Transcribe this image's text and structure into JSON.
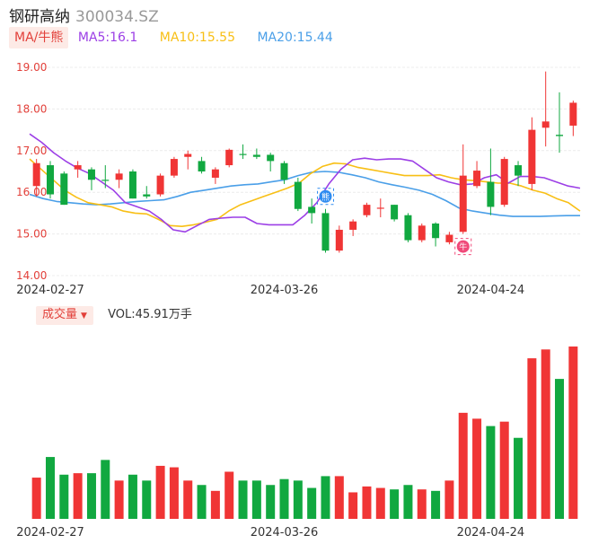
{
  "header": {
    "name": "钢研高纳",
    "code": "300034.SZ"
  },
  "ma_legend": {
    "label": "MA/牛熊",
    "ma5": "MA5:16.1",
    "ma10": "MA10:15.55",
    "ma20": "MA20:15.44"
  },
  "volume_legend": {
    "label": "成交量",
    "value": "VOL:45.91万手"
  },
  "colors": {
    "up": "#f03535",
    "down": "#11a840",
    "ma5": "#9c3fe6",
    "ma10": "#f8bf15",
    "ma20": "#4a9fe8",
    "axis_label": "#e2403a"
  },
  "chart_data": [
    {
      "type": "candlestick",
      "y_ticks": [
        "19.00",
        "18.00",
        "17.00",
        "16.00",
        "15.00",
        "14.00"
      ],
      "ylim": [
        14.0,
        19.0
      ],
      "x_tick_labels": [
        {
          "index": 1,
          "label": "2024-02-27"
        },
        {
          "index": 18,
          "label": "2024-03-26"
        },
        {
          "index": 33,
          "label": "2024-04-24"
        }
      ],
      "markers": [
        {
          "index": 21,
          "type": "bear-badge",
          "label": "熊"
        },
        {
          "index": 31,
          "type": "bull-badge",
          "label": "牛"
        }
      ],
      "candles": [
        {
          "o": 16.15,
          "h": 16.8,
          "l": 15.9,
          "c": 16.7
        },
        {
          "o": 16.65,
          "h": 16.75,
          "l": 15.85,
          "c": 15.95
        },
        {
          "o": 16.45,
          "h": 16.5,
          "l": 15.7,
          "c": 15.7
        },
        {
          "o": 16.55,
          "h": 16.75,
          "l": 16.35,
          "c": 16.65
        },
        {
          "o": 16.55,
          "h": 16.6,
          "l": 16.05,
          "c": 16.3
        },
        {
          "o": 16.3,
          "h": 16.65,
          "l": 16.1,
          "c": 16.28
        },
        {
          "o": 16.3,
          "h": 16.55,
          "l": 16.1,
          "c": 16.45
        },
        {
          "o": 16.5,
          "h": 16.55,
          "l": 15.85,
          "c": 15.85
        },
        {
          "o": 15.95,
          "h": 16.15,
          "l": 15.85,
          "c": 15.9
        },
        {
          "o": 15.95,
          "h": 16.45,
          "l": 15.9,
          "c": 16.4
        },
        {
          "o": 16.4,
          "h": 16.85,
          "l": 16.35,
          "c": 16.8
        },
        {
          "o": 16.85,
          "h": 17.0,
          "l": 16.55,
          "c": 16.92
        },
        {
          "o": 16.75,
          "h": 16.85,
          "l": 16.45,
          "c": 16.5
        },
        {
          "o": 16.35,
          "h": 16.6,
          "l": 16.2,
          "c": 16.55
        },
        {
          "o": 16.65,
          "h": 17.05,
          "l": 16.6,
          "c": 17.02
        },
        {
          "o": 16.92,
          "h": 17.15,
          "l": 16.8,
          "c": 16.9
        },
        {
          "o": 16.9,
          "h": 17.05,
          "l": 16.8,
          "c": 16.85
        },
        {
          "o": 16.9,
          "h": 16.95,
          "l": 16.5,
          "c": 16.75
        },
        {
          "o": 16.7,
          "h": 16.75,
          "l": 16.2,
          "c": 16.3
        },
        {
          "o": 16.25,
          "h": 16.35,
          "l": 15.55,
          "c": 15.6
        },
        {
          "o": 15.65,
          "h": 15.85,
          "l": 15.25,
          "c": 15.5
        },
        {
          "o": 15.5,
          "h": 15.6,
          "l": 14.55,
          "c": 14.6
        },
        {
          "o": 14.6,
          "h": 15.2,
          "l": 14.55,
          "c": 15.1
        },
        {
          "o": 15.1,
          "h": 15.35,
          "l": 14.95,
          "c": 15.3
        },
        {
          "o": 15.45,
          "h": 15.75,
          "l": 15.4,
          "c": 15.7
        },
        {
          "o": 15.63,
          "h": 15.85,
          "l": 15.4,
          "c": 15.63
        },
        {
          "o": 15.7,
          "h": 15.7,
          "l": 15.3,
          "c": 15.35
        },
        {
          "o": 15.45,
          "h": 15.5,
          "l": 14.8,
          "c": 14.85
        },
        {
          "o": 14.85,
          "h": 15.25,
          "l": 14.8,
          "c": 15.2
        },
        {
          "o": 15.25,
          "h": 15.28,
          "l": 14.7,
          "c": 14.9
        },
        {
          "o": 14.8,
          "h": 15.05,
          "l": 14.75,
          "c": 14.98
        },
        {
          "o": 15.05,
          "h": 17.15,
          "l": 15.0,
          "c": 16.4
        },
        {
          "o": 16.15,
          "h": 16.75,
          "l": 16.1,
          "c": 16.52
        },
        {
          "o": 16.25,
          "h": 17.05,
          "l": 15.45,
          "c": 15.65
        },
        {
          "o": 15.7,
          "h": 16.85,
          "l": 15.65,
          "c": 16.8
        },
        {
          "o": 16.65,
          "h": 16.75,
          "l": 16.15,
          "c": 16.4
        },
        {
          "o": 16.2,
          "h": 17.8,
          "l": 16.05,
          "c": 17.5
        },
        {
          "o": 17.55,
          "h": 18.9,
          "l": 17.1,
          "c": 17.7
        },
        {
          "o": 17.38,
          "h": 18.4,
          "l": 16.95,
          "c": 17.35
        },
        {
          "o": 17.6,
          "h": 18.2,
          "l": 17.35,
          "c": 18.15
        }
      ],
      "ma5": [
        17.4,
        17.2,
        16.95,
        16.75,
        16.58,
        16.45,
        16.25,
        16.05,
        15.75,
        15.65,
        15.55,
        15.35,
        15.1,
        15.05,
        15.2,
        15.35,
        15.38,
        15.4,
        15.4,
        15.25,
        15.22,
        15.22,
        15.22,
        15.45,
        15.75,
        16.2,
        16.55,
        16.78,
        16.82,
        16.78,
        16.8,
        16.8,
        16.75,
        16.55,
        16.35,
        16.25,
        16.18,
        16.2,
        16.35,
        16.42,
        16.22,
        16.38,
        16.38,
        16.35,
        16.25,
        16.15,
        16.1
      ],
      "ma10": [
        16.8,
        16.55,
        16.3,
        16.05,
        15.88,
        15.75,
        15.7,
        15.65,
        15.55,
        15.5,
        15.48,
        15.35,
        15.2,
        15.18,
        15.22,
        15.28,
        15.35,
        15.55,
        15.7,
        15.8,
        15.9,
        16.0,
        16.1,
        16.22,
        16.45,
        16.62,
        16.7,
        16.68,
        16.6,
        16.55,
        16.5,
        16.45,
        16.4,
        16.4,
        16.4,
        16.42,
        16.35,
        16.3,
        16.28,
        16.25,
        16.22,
        16.22,
        16.15,
        16.05,
        15.98,
        15.85,
        15.75,
        15.55
      ],
      "ma20": [
        15.95,
        15.85,
        15.78,
        15.75,
        15.72,
        15.7,
        15.72,
        15.75,
        15.78,
        15.8,
        15.82,
        15.9,
        16.0,
        16.05,
        16.1,
        16.15,
        16.18,
        16.2,
        16.25,
        16.3,
        16.4,
        16.48,
        16.5,
        16.48,
        16.42,
        16.35,
        16.25,
        16.18,
        16.12,
        16.05,
        15.95,
        15.8,
        15.62,
        15.55,
        15.5,
        15.45,
        15.42,
        15.42,
        15.42,
        15.43,
        15.44,
        15.44
      ]
    },
    {
      "type": "bar",
      "title": "成交量",
      "values": [
        28,
        42,
        30,
        31,
        31,
        40,
        26,
        30,
        26,
        36,
        35,
        26,
        23,
        19,
        32,
        26,
        26,
        23,
        27,
        26,
        21,
        29,
        29,
        18,
        22,
        21,
        20,
        23,
        20,
        19,
        26,
        72,
        68,
        63,
        66,
        55,
        109,
        115,
        95,
        117
      ]
    }
  ]
}
